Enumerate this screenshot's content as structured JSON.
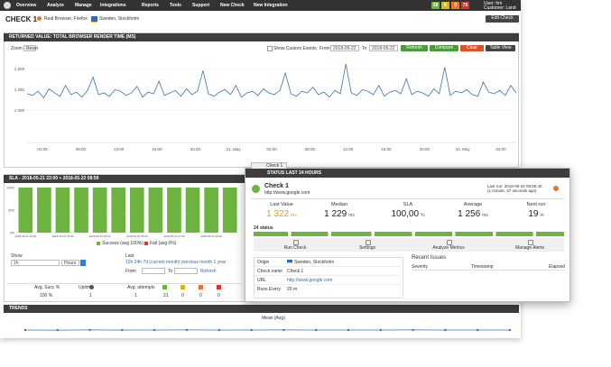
{
  "nav": {
    "items": [
      "Overview",
      "Analyze",
      "Manage",
      "Integrations",
      "Reports",
      "Tools",
      "Support",
      "New Check",
      "New Integration"
    ],
    "badges": [
      "28",
      "6",
      "0",
      "75"
    ],
    "user": "User: hm",
    "customer": "Customer: Land"
  },
  "header": {
    "title": "CHECK 1",
    "browser": "Real Browser, Firefox",
    "location": "Sweden, Stockholm",
    "edit_button": "Edit Check"
  },
  "render_panel": {
    "title": "RETURNED VALUE: TOTAL BROWSER RENDER TIME (MS)",
    "zoom": "Zoom",
    "reset": "Reset",
    "custom_events": "Show Custom Events",
    "from": "From",
    "from_date": "2018-05-22",
    "to": "To",
    "to_date": "2018-05-22",
    "buttons": [
      "Refresh",
      "Compare",
      "Clear",
      "Table View"
    ],
    "chart": {
      "type": "line",
      "color": "#3f6fae",
      "ylim": [
        700,
        1700
      ],
      "yticks": [
        {
          "value": 1000,
          "label": "1 000"
        },
        {
          "value": 1250,
          "label": "1 250"
        },
        {
          "value": 1500,
          "label": "1 500"
        }
      ],
      "x_labels": [
        "04:00",
        "08:00",
        "12:00",
        "16:00",
        "20:00",
        "21. May",
        "04:00",
        "08:00",
        "12:00",
        "16:00",
        "20:00",
        "22. May",
        "04:00"
      ],
      "values": [
        1200,
        1180,
        1230,
        1150,
        1260,
        1210,
        1170,
        1300,
        1190,
        1220,
        1160,
        1240,
        1400,
        1190,
        1210,
        1170,
        1250,
        1230,
        1180,
        1210,
        1290,
        1160,
        1220,
        1200,
        1350,
        1180,
        1210,
        1240,
        1170,
        1260,
        1190,
        1230,
        1480,
        1200,
        1170,
        1220,
        1250,
        1190,
        1300,
        1160,
        1210,
        1230,
        1180,
        1260,
        1210,
        1190,
        1240,
        1450,
        1200,
        1170,
        1230,
        1210,
        1280,
        1190,
        1220,
        1160,
        1240,
        1200,
        1560,
        1210,
        1180,
        1250,
        1230,
        1190,
        1300,
        1170,
        1220,
        1240,
        1200,
        1380,
        1190,
        1230,
        1210,
        1170,
        1260,
        1200,
        1520,
        1180,
        1230,
        1210,
        1250,
        1190,
        1170,
        1340,
        1220,
        1200,
        1240,
        1180,
        1300,
        1210
      ]
    }
  },
  "sla_panel": {
    "title": "SLA - 2018-05-21 23:00 + 2018-05-22 08:59",
    "chart": {
      "type": "bar",
      "color": "#6cb33f",
      "ylim": [
        0,
        100
      ],
      "yticks": [
        {
          "value": 0,
          "label": "0%"
        },
        {
          "value": 50,
          "label": "50%"
        },
        {
          "value": 100,
          "label": "100%"
        }
      ],
      "categories": [
        "2018-05-21 23:00",
        null,
        "2018-05-22 01:00",
        null,
        "2018-05-22 03:00",
        null,
        "2018-05-22 05:00",
        null,
        "2018-05-22 07:00",
        null,
        "2018-05-22 09:00",
        null
      ],
      "values": [
        100,
        100,
        100,
        100,
        100,
        100,
        100,
        100,
        100,
        100,
        100,
        100
      ]
    },
    "legend": [
      "Success (avg 100%)",
      "Fail (avg 0%)"
    ],
    "show": "Show",
    "show_value": "1h",
    "unit": "Hours",
    "last": "Last",
    "periods": "12h 24h 7d (current month) previous month 1 year",
    "from": "From",
    "to": "To",
    "refresh": "Refresh",
    "stats_headers": [
      "Avg. Succ %",
      "Uptime",
      "Avg. attempts"
    ],
    "stats_values": [
      "100 %",
      "1",
      "1",
      "21",
      "0",
      "0",
      "0"
    ]
  },
  "trends_panel": {
    "title": "TRENDS",
    "chart_title": "Mean (Avg)",
    "chart": {
      "type": "line",
      "color": "#3f6fae",
      "ylim": [
        0,
        2500
      ],
      "values": [
        1250,
        1240,
        1260,
        1255,
        1248,
        1262,
        1251,
        1245,
        1258,
        1250,
        1253,
        1247,
        1260,
        1252,
        1249,
        1256
      ]
    }
  },
  "popup": {
    "tab": "Check 1",
    "title": "STATUS LAST 24 HOURS",
    "check_name": "Check 1",
    "url": "http://www.google.com",
    "last_run": "Last run: 2018-05-22 09:55:40",
    "last_run_ago": "(1 minute, 47 seconds ago)",
    "metrics": [
      {
        "label": "Last Value",
        "value": "1 322",
        "unit": "ms"
      },
      {
        "label": "Median",
        "value": "1 229",
        "unit": "ms"
      },
      {
        "label": "SLA",
        "value": "100,00",
        "unit": "%"
      },
      {
        "label": "Average",
        "value": "1 256",
        "unit": "ms"
      },
      {
        "label": "Next run",
        "value": "19",
        "unit": "m"
      }
    ],
    "status_label": "24 status",
    "actions": [
      "Run Check",
      "Settings",
      "Analyze Metrics",
      "Manage Alerts"
    ],
    "details": [
      [
        "Origin",
        "Sweden, Stockholm"
      ],
      [
        "Check name",
        "Check 1"
      ],
      [
        "URL",
        "http://www.google.com"
      ],
      [
        "Runs Every",
        "20 m"
      ]
    ],
    "recent_issues": "Recent Issues",
    "issue_columns": [
      "Severity",
      "Timestamp",
      "Elapsed"
    ]
  }
}
